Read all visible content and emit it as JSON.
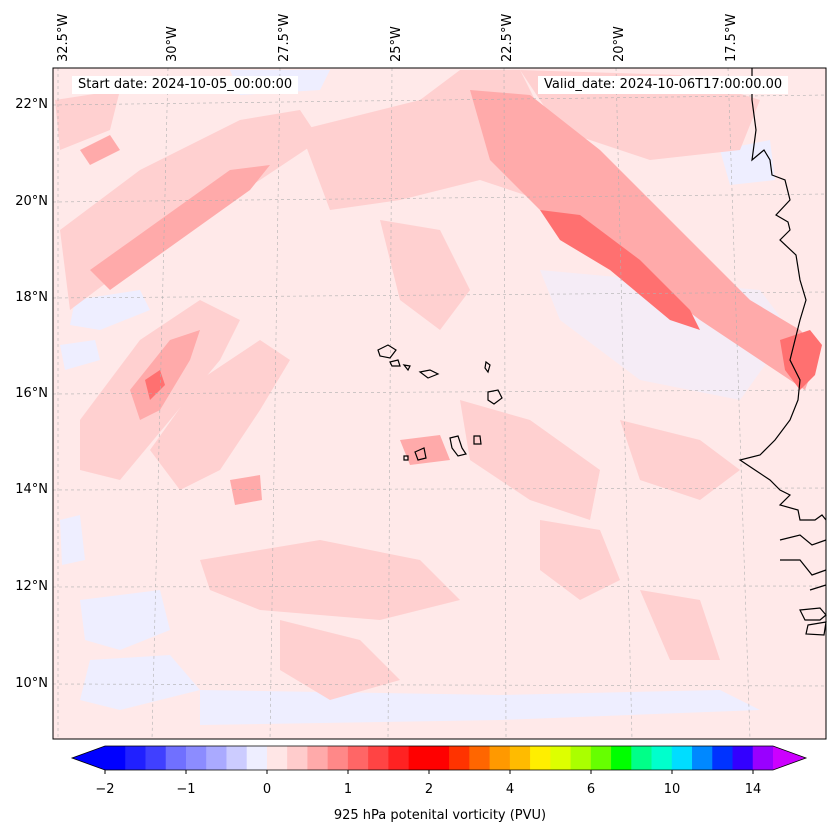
{
  "map": {
    "start_date": "Start date: 2024-10-05_00:00:00",
    "valid_date": "Valid_date: 2024-10-06T17:00:00.00",
    "lon_labels": [
      "32.5°W",
      "30°W",
      "27.5°W",
      "25°W",
      "22.5°W",
      "20°W",
      "17.5°W"
    ],
    "lat_labels": [
      "22°N",
      "20°N",
      "18°N",
      "16°N",
      "14°N",
      "12°N",
      "10°N"
    ],
    "field": "925 hPa potenital vorticity (PVU)"
  },
  "colorbar": {
    "label": "925 hPa potenital vorticity (PVU)",
    "ticks": [
      "−2",
      "−1",
      "0",
      "1",
      "2",
      "4",
      "6",
      "10",
      "14"
    ],
    "colors": [
      "#0000ff",
      "#2020ff",
      "#4040ff",
      "#7070ff",
      "#8c8cff",
      "#aaaaff",
      "#ccccff",
      "#eeeeff",
      "#ffe6e6",
      "#ffcccc",
      "#ffaaaa",
      "#ff8888",
      "#ff6666",
      "#ff4444",
      "#ff2222",
      "#ff0000",
      "#ff0000",
      "#ff3300",
      "#ff6600",
      "#ff9900",
      "#ffbb00",
      "#ffee00",
      "#ddff00",
      "#aaff00",
      "#66ff00",
      "#00ff00",
      "#00ff88",
      "#00ffcc",
      "#00ddff",
      "#0088ff",
      "#0033ff",
      "#3300ff",
      "#9900ff"
    ],
    "extend_low": "#0000ff",
    "extend_high": "#cc00ff"
  },
  "colors": {
    "background_field": "#ffe9e9",
    "light_pink": "#ffd0d0",
    "mid_pink": "#ffaaaa",
    "strong_red": "#ff7070",
    "light_blue": "#eeeeff",
    "coastline": "#000000",
    "gridline": "#b0b0b0"
  }
}
